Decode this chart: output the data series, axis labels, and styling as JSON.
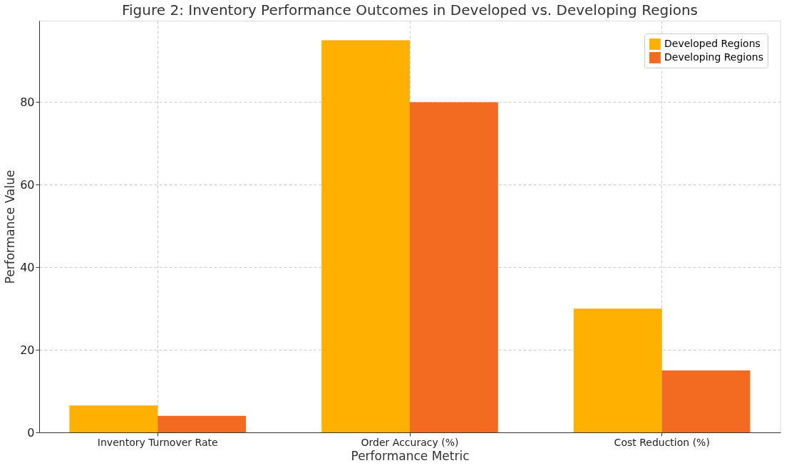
{
  "chart_data": {
    "type": "bar",
    "title": "Figure 2: Inventory Performance Outcomes in Developed vs. Developing Regions",
    "xlabel": "Performance Metric",
    "ylabel": "Performance Value",
    "categories": [
      "Inventory Turnover Rate",
      "Order Accuracy (%)",
      "Cost Reduction (%)"
    ],
    "series": [
      {
        "name": "Developed Regions",
        "color": "#ffb000",
        "values": [
          6.5,
          95,
          30
        ]
      },
      {
        "name": "Developing Regions",
        "color": "#f36b21",
        "values": [
          4,
          80,
          15
        ]
      }
    ],
    "ylim": [
      0,
      99.75
    ],
    "yticks": [
      0,
      20,
      40,
      60,
      80
    ],
    "grid": true,
    "legend": "top right"
  }
}
